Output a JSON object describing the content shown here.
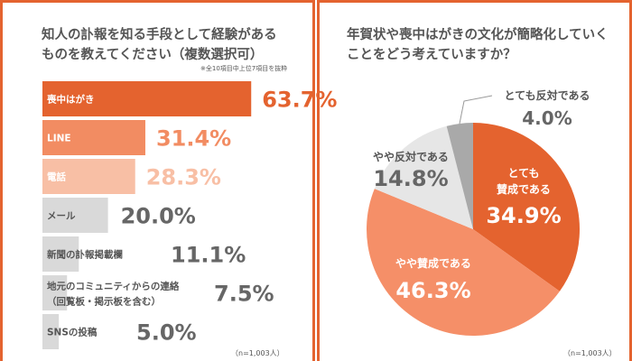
{
  "colors": {
    "accent": "#E4632F",
    "mid": "#F28C62",
    "light": "#F8BFA5",
    "gray": "#D9D9D9",
    "pie_dark_gray": "#A9A9A9",
    "pie_light_gray": "#E6E6E6",
    "pie_mid": "#F58F68"
  },
  "chart_data": [
    {
      "type": "bar",
      "orientation": "horizontal",
      "title": "知人の訃報を知る手段として経験があるものを教えてください（複数選択可）",
      "note": "※全10項目中上位7項目を抜粋",
      "sample": "（n=1,003人）",
      "categories": [
        "喪中はがき",
        "LINE",
        "電話",
        "メール",
        "新聞の訃報掲載欄",
        "地元のコミュニティからの連絡\n（回覧板・掲示板を含む）",
        "SNSの投稿"
      ],
      "values": [
        63.7,
        31.4,
        28.3,
        20.0,
        11.1,
        7.5,
        5.0
      ],
      "labels": [
        "63.7%",
        "31.4%",
        "28.3%",
        "20.0%",
        "11.1%",
        "7.5%",
        "5.0%"
      ],
      "unit": "%"
    },
    {
      "type": "pie",
      "title": "年賀状や喪中はがきの文化が簡略化していくことをどう考えていますか？",
      "sample": "（n=1,003人）",
      "slices": [
        {
          "label": "とても\n賛成である",
          "value": 34.9,
          "text": "34.9%"
        },
        {
          "label": "やや賛成である",
          "value": 46.3,
          "text": "46.3%"
        },
        {
          "label": "やや反対である",
          "value": 14.8,
          "text": "14.8%"
        },
        {
          "label": "とても反対である",
          "value": 4.0,
          "text": "4.0%"
        }
      ]
    }
  ]
}
